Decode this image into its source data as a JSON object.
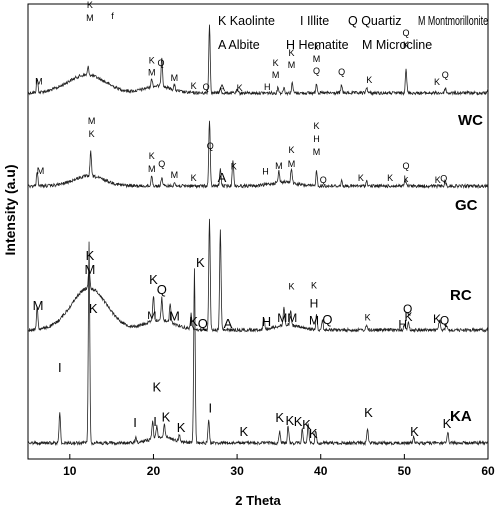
{
  "chart_data": {
    "type": "line",
    "xlabel": "2 Theta",
    "ylabel": "Intensity (a.u)",
    "xlim": [
      5,
      60
    ],
    "xticks": [
      "10",
      "20",
      "30",
      "40",
      "50",
      "60"
    ],
    "xtick_values": [
      10,
      20,
      30,
      40,
      50,
      60
    ],
    "legend": [
      "K Kaolinte",
      "I Illite",
      "Q Quartiz",
      "M Montmorillonite",
      "A Albite",
      "H Hematite",
      "M Microcline"
    ],
    "series": [
      {
        "name": "WC",
        "baseline": 93,
        "peaks": [
          [
            6.1,
            14
          ],
          [
            12.2,
            8
          ],
          [
            19.8,
            8
          ],
          [
            21,
            30
          ],
          [
            22.5,
            5
          ],
          [
            26.7,
            68
          ],
          [
            28,
            4
          ],
          [
            30,
            3
          ],
          [
            34.9,
            6
          ],
          [
            35.6,
            6
          ],
          [
            36.6,
            10
          ],
          [
            39.5,
            10
          ],
          [
            42.5,
            8
          ],
          [
            45.5,
            6
          ],
          [
            50.2,
            25
          ],
          [
            54.9,
            5
          ],
          [
            60,
            5
          ]
        ],
        "humps": [
          [
            12,
            18,
            3.2
          ],
          [
            20.5,
            7,
            2.2
          ]
        ],
        "annotations": [
          {
            "label": "M",
            "x": 6.3,
            "dy": -7,
            "size": 9
          },
          {
            "label": "K",
            "x": 12.4,
            "dy": -67,
            "size": 9
          },
          {
            "label": "M",
            "x": 12.4,
            "dy": -54,
            "size": 9
          },
          {
            "label": "f",
            "x": 15.1,
            "dy": -67,
            "size": 9
          },
          {
            "label": "K",
            "x": 19.8,
            "dy": -15,
            "size": 9
          },
          {
            "label": "M",
            "x": 19.8,
            "dy": -3,
            "size": 9
          },
          {
            "label": "Q",
            "x": 20.9,
            "dy": -5,
            "size": 9
          },
          {
            "label": "M",
            "x": 22.5,
            "dy": -4,
            "size": 9
          },
          {
            "label": "K",
            "x": 24.8,
            "dy": -4,
            "size": 9
          },
          {
            "label": "Q",
            "x": 26.3,
            "dy": -3,
            "size": 9
          },
          {
            "label": "A",
            "x": 28.2,
            "dy": -2,
            "size": 9
          },
          {
            "label": "K",
            "x": 30.3,
            "dy": -2,
            "size": 9
          },
          {
            "label": "H",
            "x": 33.6,
            "dy": -3,
            "size": 9
          },
          {
            "label": "K",
            "x": 34.6,
            "dy": -27,
            "size": 9
          },
          {
            "label": "M",
            "x": 34.6,
            "dy": -15,
            "size": 9
          },
          {
            "label": "K",
            "x": 36.5,
            "dy": -32,
            "size": 9
          },
          {
            "label": "M",
            "x": 36.5,
            "dy": -20,
            "size": 9
          },
          {
            "label": "k",
            "x": 39.5,
            "dy": -33,
            "size": 9
          },
          {
            "label": "M",
            "x": 39.5,
            "dy": -21,
            "size": 9
          },
          {
            "label": "Q",
            "x": 39.5,
            "dy": -9,
            "size": 9
          },
          {
            "label": "Q",
            "x": 42.5,
            "dy": -10,
            "size": 9
          },
          {
            "label": "K",
            "x": 45.8,
            "dy": -10,
            "size": 9
          },
          {
            "label": "Q",
            "x": 50.2,
            "dy": -32,
            "size": 9
          },
          {
            "label": "K",
            "x": 50.2,
            "dy": -20,
            "size": 9
          },
          {
            "label": "K",
            "x": 53.9,
            "dy": -8,
            "size": 9
          },
          {
            "label": "Q",
            "x": 54.9,
            "dy": -10,
            "size": 9
          }
        ]
      },
      {
        "name": "GC",
        "baseline": 186,
        "peaks": [
          [
            6.1,
            15
          ],
          [
            12.5,
            24
          ],
          [
            19.8,
            11
          ],
          [
            21,
            9
          ],
          [
            22.5,
            4
          ],
          [
            26.7,
            66
          ],
          [
            28,
            17
          ],
          [
            29.5,
            27
          ],
          [
            35,
            11
          ],
          [
            36.5,
            15
          ],
          [
            39.5,
            15
          ],
          [
            42.5,
            5
          ],
          [
            45.5,
            5
          ],
          [
            50.1,
            6
          ],
          [
            54.9,
            5
          ]
        ],
        "humps": [
          [
            12.3,
            10,
            2.6
          ],
          [
            35.5,
            4,
            2.0
          ]
        ],
        "annotations": [
          {
            "label": "M",
            "x": 6.5,
            "dy": -12,
            "size": 9
          },
          {
            "label": "M",
            "x": 12.6,
            "dy": -40,
            "size": 9
          },
          {
            "label": "K",
            "x": 12.6,
            "dy": -27,
            "size": 9
          },
          {
            "label": "K",
            "x": 19.8,
            "dy": -16,
            "size": 9
          },
          {
            "label": "M",
            "x": 19.8,
            "dy": -3,
            "size": 9
          },
          {
            "label": "Q",
            "x": 21,
            "dy": -10,
            "size": 9
          },
          {
            "label": "M",
            "x": 22.5,
            "dy": -4,
            "size": 9
          },
          {
            "label": "K",
            "x": 24.8,
            "dy": -5,
            "size": 9
          },
          {
            "label": "Q",
            "x": 26.8,
            "dy": -4,
            "size": 9
          },
          {
            "label": "A",
            "x": 28.2,
            "dy": -3,
            "size": 13
          },
          {
            "label": "K",
            "x": 29.6,
            "dy": -3,
            "size": 9
          },
          {
            "label": "H",
            "x": 33.4,
            "dy": -10,
            "size": 9
          },
          {
            "label": "M",
            "x": 35,
            "dy": -2,
            "size": 9
          },
          {
            "label": "K",
            "x": 36.5,
            "dy": -15,
            "size": 9
          },
          {
            "label": "M",
            "x": 36.5,
            "dy": -1,
            "size": 9
          },
          {
            "label": "K",
            "x": 39.5,
            "dy": -42,
            "size": 9
          },
          {
            "label": "H",
            "x": 39.5,
            "dy": -29,
            "size": 9
          },
          {
            "label": "M",
            "x": 39.5,
            "dy": -16,
            "size": 9
          },
          {
            "label": "Q",
            "x": 40.3,
            "dy": -3,
            "size": 9
          },
          {
            "label": "K",
            "x": 44.8,
            "dy": -5,
            "size": 9
          },
          {
            "label": "K",
            "x": 48.3,
            "dy": -5,
            "size": 9
          },
          {
            "label": "Q",
            "x": 50.2,
            "dy": -14,
            "size": 9
          },
          {
            "label": "k",
            "x": 50.2,
            "dy": -1,
            "size": 9
          },
          {
            "label": "K",
            "x": 54,
            "dy": -3,
            "size": 9
          },
          {
            "label": "Q",
            "x": 54.7,
            "dy": -4,
            "size": 9
          }
        ]
      },
      {
        "name": "RC",
        "baseline": 330,
        "peaks": [
          [
            6.1,
            23
          ],
          [
            12.3,
            20
          ],
          [
            20,
            26
          ],
          [
            21,
            22
          ],
          [
            22,
            18
          ],
          [
            24.5,
            15
          ],
          [
            26.7,
            112
          ],
          [
            28,
            100
          ],
          [
            33.2,
            12
          ],
          [
            35.6,
            18
          ],
          [
            36.4,
            14
          ],
          [
            39.5,
            16
          ],
          [
            40.2,
            10
          ],
          [
            45.5,
            5
          ],
          [
            50,
            6
          ],
          [
            50.5,
            8
          ],
          [
            54.2,
            10
          ],
          [
            55,
            6
          ]
        ],
        "humps": [
          [
            12.3,
            42,
            3.0
          ],
          [
            20.8,
            10,
            2.5
          ],
          [
            36,
            5,
            2.0
          ]
        ],
        "annotations": [
          {
            "label": "M",
            "x": 6.2,
            "dy": -8,
            "size": 13
          },
          {
            "label": "K",
            "x": 12.4,
            "dy": -18,
            "size": 13
          },
          {
            "label": "M",
            "x": 12.4,
            "dy": -4,
            "size": 13
          },
          {
            "label": "K",
            "x": 20,
            "dy": -11,
            "size": 13
          },
          {
            "label": "Q",
            "x": 21,
            "dy": -4,
            "size": 13
          },
          {
            "label": "M",
            "x": 22.5,
            "dy": -3,
            "size": 13
          },
          {
            "label": "M",
            "x": 19.8,
            "dy": -1,
            "size": 11
          },
          {
            "label": "K",
            "x": 24.8,
            "dy": -3,
            "size": 13
          },
          {
            "label": "Q",
            "x": 25.9,
            "dy": -2,
            "size": 13
          },
          {
            "label": "A",
            "x": 28.9,
            "dy": -2,
            "size": 13
          },
          {
            "label": "H",
            "x": 33.5,
            "dy": -3,
            "size": 13
          },
          {
            "label": "MM",
            "x": 36,
            "dy": -3,
            "size": 12
          },
          {
            "label": "K",
            "x": 36.5,
            "dy": -29,
            "size": 9
          },
          {
            "label": "K",
            "x": 39.2,
            "dy": -41,
            "size": 9
          },
          {
            "label": "H",
            "x": 39.2,
            "dy": -22,
            "size": 12
          },
          {
            "label": "M",
            "x": 39.2,
            "dy": -5,
            "size": 12
          },
          {
            "label": "Q",
            "x": 40.8,
            "dy": -6,
            "size": 13
          },
          {
            "label": "K",
            "x": 45.6,
            "dy": -7,
            "size": 9
          },
          {
            "label": "Q",
            "x": 50.4,
            "dy": -13,
            "size": 12
          },
          {
            "label": "H",
            "x": 49.8,
            "dy": -1,
            "size": 12
          },
          {
            "label": "K",
            "x": 50.5,
            "dy": -1,
            "size": 12
          },
          {
            "label": "K",
            "x": 53.9,
            "dy": -7,
            "size": 12
          },
          {
            "label": "Q",
            "x": 54.8,
            "dy": -5,
            "size": 12
          }
        ]
      },
      {
        "name": "KA",
        "baseline": 443,
        "peaks": [
          [
            8.8,
            30
          ],
          [
            12.3,
            200
          ],
          [
            17.9,
            5
          ],
          [
            19.9,
            18
          ],
          [
            20.4,
            12
          ],
          [
            21.3,
            14
          ],
          [
            23.1,
            6
          ],
          [
            24.9,
            173
          ],
          [
            26.6,
            24
          ],
          [
            35.1,
            12
          ],
          [
            36.1,
            17
          ],
          [
            37.8,
            14
          ],
          [
            38.5,
            20
          ],
          [
            39.4,
            12
          ],
          [
            45.6,
            14
          ],
          [
            51.1,
            6
          ],
          [
            55.2,
            10
          ]
        ],
        "humps": [
          [
            21,
            6,
            2.0
          ]
        ],
        "annotations": [
          {
            "label": "K",
            "x": 12.8,
            "dy": -130,
            "size": 13
          },
          {
            "label": "I",
            "x": 8.8,
            "dy": -41,
            "size": 13
          },
          {
            "label": "I",
            "x": 17.8,
            "dy": -13,
            "size": 13
          },
          {
            "label": "K",
            "x": 20.4,
            "dy": -34,
            "size": 13
          },
          {
            "label": "I",
            "x": 20.2,
            "dy": -11,
            "size": 13
          },
          {
            "label": "K",
            "x": 21.5,
            "dy": -15,
            "size": 13
          },
          {
            "label": "K",
            "x": 23.3,
            "dy": -9,
            "size": 13
          },
          {
            "label": "K",
            "x": 25.6,
            "dy": -176,
            "size": 13
          },
          {
            "label": "I",
            "x": 26.8,
            "dy": -29,
            "size": 13
          },
          {
            "label": "K",
            "x": 30.8,
            "dy": -7,
            "size": 13
          },
          {
            "label": "K",
            "x": 35.1,
            "dy": -9,
            "size": 13
          },
          {
            "label": "K",
            "x": 36.3,
            "dy": -17,
            "size": 13
          },
          {
            "label": "K",
            "x": 37.3,
            "dy": -17,
            "size": 13
          },
          {
            "label": "K",
            "x": 38.3,
            "dy": -13,
            "size": 13
          },
          {
            "label": "K",
            "x": 39.1,
            "dy": -5,
            "size": 13
          },
          {
            "label": "K",
            "x": 45.7,
            "dy": -19,
            "size": 13
          },
          {
            "label": "K",
            "x": 51.2,
            "dy": -4,
            "size": 13
          },
          {
            "label": "K",
            "x": 55.1,
            "dy": -10,
            "size": 13
          }
        ]
      }
    ]
  }
}
